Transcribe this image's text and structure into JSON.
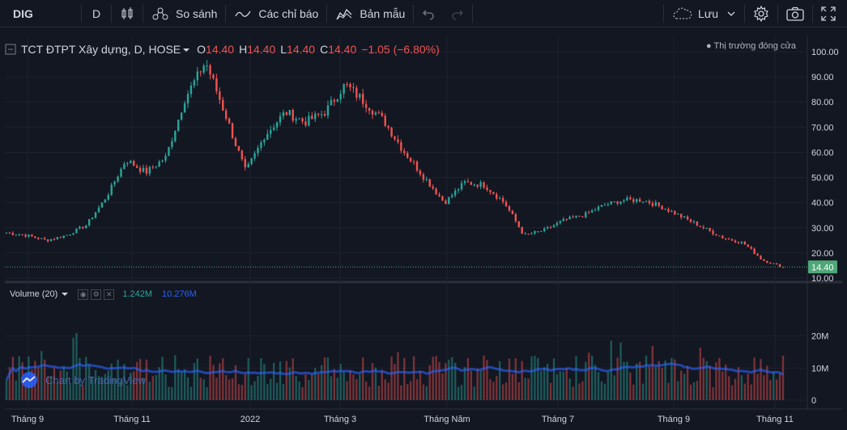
{
  "toolbar": {
    "symbol": "DIG",
    "interval": "D",
    "compare_label": "So sánh",
    "indicators_label": "Các chỉ báo",
    "templates_label": "Bản mẫu",
    "save_label": "Lưu"
  },
  "legend": {
    "title": "TCT ĐTPT Xây dựng, D, HOSE",
    "o_label": "O",
    "o_value": "14.40",
    "h_label": "H",
    "h_value": "14.40",
    "l_label": "L",
    "l_value": "14.40",
    "c_label": "C",
    "c_value": "14.40",
    "change": "−1.05 (−6.80%)"
  },
  "market_status": "Thị trường đóng cửa",
  "volume_legend": {
    "title": "Volume (20)",
    "volume": "1.242M",
    "ma": "10.276M"
  },
  "watermark": "Chart by TradingView",
  "colors": {
    "up": "#26a69a",
    "down": "#ef5350",
    "background": "#131722",
    "grid": "#1e222d",
    "ma_line": "#2962ff",
    "last_price_bg": "#4fa77a"
  },
  "chart_data": [
    {
      "type": "candlestick",
      "title": "TCT ĐTPT Xây dựng, D, HOSE",
      "ylim": [
        10,
        100
      ],
      "y_ticks": [
        "100.00",
        "90.00",
        "80.00",
        "70.00",
        "60.00",
        "50.00",
        "40.00",
        "30.00",
        "20.00",
        "10.00"
      ],
      "last_price": "14.40",
      "x_ticks": [
        "Tháng 9",
        "Tháng 11",
        "2022",
        "Tháng 3",
        "Tháng Năm",
        "Tháng 7",
        "Tháng 9",
        "Tháng 11"
      ],
      "close_path": [
        [
          "Tháng 9",
          28
        ],
        [
          "",
          27
        ],
        [
          "",
          25
        ],
        [
          "",
          27
        ],
        [
          "",
          31
        ],
        [
          "Tháng 11",
          42
        ],
        [
          "",
          57
        ],
        [
          "",
          52
        ],
        [
          "",
          58
        ],
        [
          "",
          82
        ],
        [
          "2022",
          96
        ],
        [
          "",
          75
        ],
        [
          "",
          52
        ],
        [
          "",
          67
        ],
        [
          "",
          76
        ],
        [
          "Tháng 3",
          72
        ],
        [
          "",
          76
        ],
        [
          "",
          87
        ],
        [
          "",
          80
        ],
        [
          "",
          72
        ],
        [
          "",
          60
        ],
        [
          "Tháng Năm",
          50
        ],
        [
          "",
          40
        ],
        [
          "",
          48
        ],
        [
          "",
          47
        ],
        [
          "",
          40
        ],
        [
          "Tháng 7",
          27
        ],
        [
          "",
          29
        ],
        [
          "",
          33
        ],
        [
          "",
          35
        ],
        [
          "",
          39
        ],
        [
          "",
          41
        ],
        [
          "",
          41
        ],
        [
          "Tháng 9",
          38
        ],
        [
          "",
          34
        ],
        [
          "",
          30
        ],
        [
          "",
          26
        ],
        [
          "",
          24
        ],
        [
          "Tháng 11",
          17
        ],
        [
          "",
          14.4
        ]
      ]
    },
    {
      "type": "bar",
      "title": "Volume (20)",
      "ylim": [
        0,
        30
      ],
      "y_ticks": [
        "20M",
        "10M",
        "0"
      ],
      "unit": "M",
      "current_volume_m": 1.242,
      "current_ma_m": 10.276
    }
  ]
}
